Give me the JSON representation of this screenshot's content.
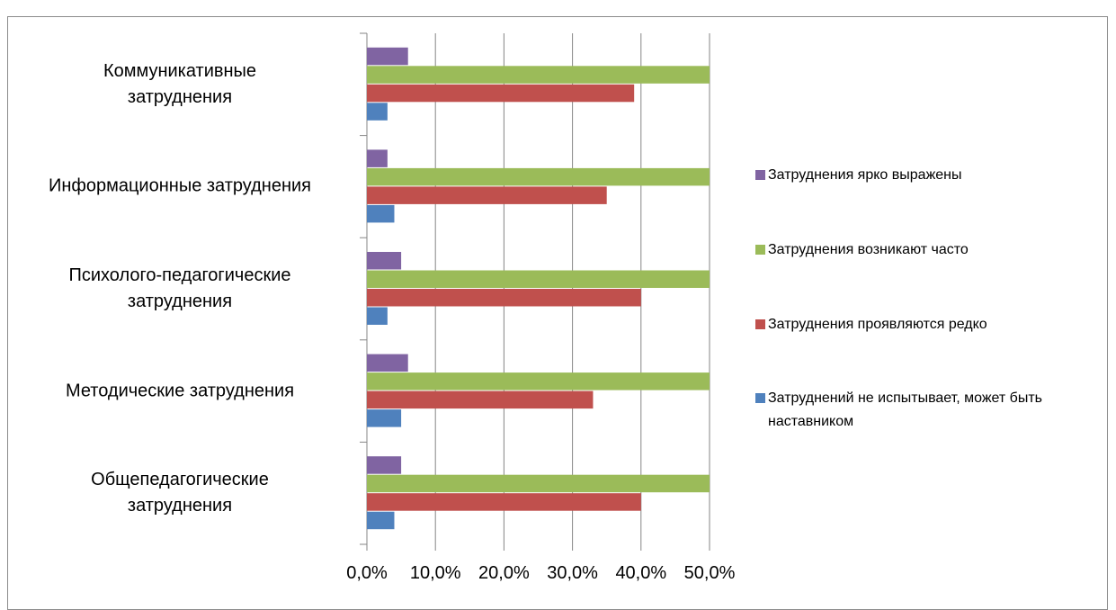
{
  "chart_data": {
    "type": "bar",
    "orientation": "horizontal",
    "categories": [
      "Коммуникативные\nзатруднения",
      "Информационные затруднения",
      "Психолого-педагогические\nзатруднения",
      "Методические затруднения",
      "Общепедагогические\nзатруднения"
    ],
    "series": [
      {
        "name": "Затруднения ярко выражены",
        "color": "#8064a2",
        "values": [
          6,
          3,
          5,
          6,
          5
        ]
      },
      {
        "name": "Затруднения возникают часто",
        "color": "#9bbb59",
        "values": [
          50,
          50,
          50,
          50,
          50
        ]
      },
      {
        "name": "Затруднения проявляются редко",
        "color": "#c0504d",
        "values": [
          39,
          35,
          40,
          33,
          40
        ]
      },
      {
        "name": "Затруднений не испытывает, может быть наставником",
        "color": "#4f81bd",
        "values": [
          3,
          4,
          3,
          5,
          4
        ]
      }
    ],
    "xlim": [
      0,
      50
    ],
    "xticks": [
      {
        "value": 0,
        "label": "0,0%"
      },
      {
        "value": 10,
        "label": "10,0%"
      },
      {
        "value": 20,
        "label": "20,0%"
      },
      {
        "value": 30,
        "label": "30,0%"
      },
      {
        "value": 40,
        "label": "40,0%"
      },
      {
        "value": 50,
        "label": "50,0%"
      }
    ],
    "grid": true,
    "legend": "right"
  }
}
